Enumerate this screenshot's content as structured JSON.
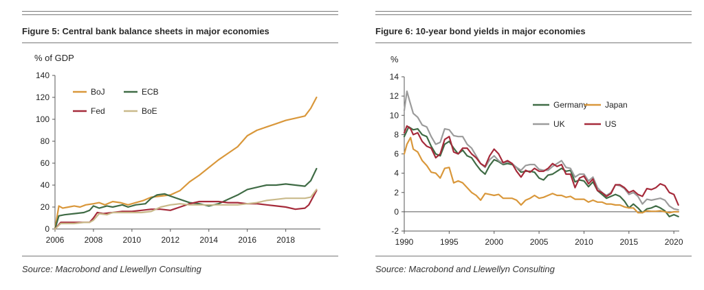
{
  "figures": [
    {
      "title": "Figure 5: Central bank balance sheets in major economies",
      "source": "Source: Macrobond and Llewellyn Consulting",
      "chart_data": {
        "type": "line",
        "title": "Figure 5: Central bank balance sheets in major economies",
        "ylabel": "% of GDP",
        "xlabel": "",
        "xlim": [
          2006,
          2019.8
        ],
        "ylim": [
          0,
          140
        ],
        "xticks": [
          2006,
          2008,
          2010,
          2012,
          2014,
          2016,
          2018
        ],
        "yticks": [
          0,
          20,
          40,
          60,
          80,
          100,
          120,
          140
        ],
        "grid": false,
        "legend": "top-left",
        "series": [
          {
            "name": "BoJ",
            "color": "#d9973a",
            "x": [
              2006,
              2006.2,
              2006.4,
              2006.7,
              2007,
              2007.3,
              2007.6,
              2008,
              2008.3,
              2008.6,
              2009,
              2009.4,
              2009.8,
              2010.2,
              2010.6,
              2011,
              2011.5,
              2012,
              2012.5,
              2013,
              2013.5,
              2014,
              2014.5,
              2015,
              2015.5,
              2016,
              2016.5,
              2017,
              2017.5,
              2018,
              2018.5,
              2019,
              2019.3,
              2019.6
            ],
            "y": [
              0,
              21,
              19,
              20,
              21,
              20,
              22,
              23,
              24,
              22,
              25,
              24,
              22,
              24,
              26,
              29,
              30,
              31,
              35,
              43,
              49,
              56,
              63,
              69,
              75,
              85,
              90,
              93,
              96,
              99,
              101,
              103,
              110,
              120
            ]
          },
          {
            "name": "ECB",
            "color": "#3f6b45",
            "x": [
              2006,
              2006.2,
              2006.5,
              2007,
              2007.5,
              2007.8,
              2008,
              2008.3,
              2008.7,
              2009,
              2009.5,
              2009.8,
              2010.2,
              2010.7,
              2011,
              2011.3,
              2011.7,
              2012,
              2012.5,
              2013,
              2013.5,
              2014,
              2014.5,
              2015,
              2015.5,
              2016,
              2016.5,
              2017,
              2017.5,
              2018,
              2018.5,
              2019,
              2019.3,
              2019.6
            ],
            "y": [
              0,
              12,
              13,
              14,
              15,
              17,
              21,
              19,
              21,
              20,
              22,
              20,
              22,
              23,
              28,
              31,
              32,
              30,
              27,
              24,
              23,
              21,
              23,
              27,
              31,
              36,
              38,
              40,
              40,
              41,
              40,
              39,
              44,
              55
            ]
          },
          {
            "name": "Fed",
            "color": "#a52a3a",
            "x": [
              2006,
              2006.3,
              2007,
              2007.5,
              2007.8,
              2008,
              2008.2,
              2008.5,
              2009,
              2009.5,
              2010,
              2010.5,
              2011,
              2011.5,
              2012,
              2012.5,
              2013,
              2013.5,
              2014,
              2014.5,
              2015,
              2015.5,
              2016,
              2016.5,
              2017,
              2017.5,
              2018,
              2018.5,
              2019,
              2019.2,
              2019.6
            ],
            "y": [
              0,
              6,
              6,
              6,
              6,
              10,
              15,
              14,
              15,
              16,
              16,
              17,
              18,
              18,
              17,
              20,
              23,
              25,
              25,
              25,
              24,
              24,
              23,
              23,
              22,
              21,
              20,
              18,
              19,
              22,
              35
            ]
          },
          {
            "name": "BoE",
            "color": "#c9b98a",
            "x": [
              2006,
              2006.3,
              2007,
              2007.5,
              2007.8,
              2008,
              2008.3,
              2008.7,
              2009,
              2009.5,
              2010,
              2010.5,
              2011,
              2011.5,
              2012,
              2012.5,
              2013,
              2013.5,
              2014,
              2014.5,
              2015,
              2015.5,
              2016,
              2016.5,
              2017,
              2017.5,
              2018,
              2018.5,
              2019,
              2019.3,
              2019.6
            ],
            "y": [
              0,
              5,
              5,
              6,
              6,
              8,
              14,
              13,
              15,
              15,
              15,
              15,
              16,
              20,
              22,
              23,
              22,
              22,
              22,
              22,
              22,
              22,
              23,
              24,
              26,
              27,
              28,
              28,
              28,
              29,
              36
            ]
          }
        ]
      }
    },
    {
      "title": "Figure 6: 10-year bond yields in major economies",
      "source": "Source: Macrobond and Llewellyn Consulting",
      "chart_data": {
        "type": "line",
        "title": "Figure 6: 10-year bond yields in major economies",
        "ylabel": "%",
        "xlabel": "",
        "xlim": [
          1990,
          2020.6
        ],
        "ylim": [
          -2,
          14
        ],
        "xticks": [
          1990,
          1995,
          2000,
          2005,
          2010,
          2015,
          2020
        ],
        "yticks": [
          -2,
          0,
          2,
          4,
          6,
          8,
          10,
          12,
          14
        ],
        "grid": false,
        "legend": "top-right",
        "series": [
          {
            "name": "Germany",
            "color": "#3f6b45",
            "x": [
              1990,
              1990.5,
              1991,
              1991.5,
              1992,
              1992.5,
              1993,
              1993.5,
              1994,
              1994.5,
              1995,
              1995.5,
              1996,
              1996.5,
              1997,
              1997.5,
              1998,
              1998.5,
              1999,
              1999.5,
              2000,
              2000.5,
              2001,
              2001.5,
              2002,
              2002.5,
              2003,
              2003.5,
              2004,
              2004.5,
              2005,
              2005.5,
              2006,
              2006.5,
              2007,
              2007.5,
              2008,
              2008.5,
              2009,
              2009.5,
              2010,
              2010.5,
              2011,
              2011.5,
              2012,
              2012.5,
              2013,
              2013.5,
              2014,
              2014.5,
              2015,
              2015.5,
              2016,
              2016.5,
              2017,
              2017.5,
              2018,
              2018.5,
              2019,
              2019.5,
              2020,
              2020.5
            ],
            "y": [
              7.8,
              8.8,
              8.5,
              8.6,
              8.0,
              7.8,
              6.8,
              6.0,
              5.8,
              7.0,
              7.3,
              6.6,
              6.0,
              6.4,
              5.8,
              5.6,
              4.9,
              4.3,
              3.9,
              4.8,
              5.4,
              5.2,
              4.9,
              5.0,
              4.9,
              4.6,
              4.1,
              4.2,
              4.2,
              4.1,
              3.5,
              3.3,
              3.8,
              3.9,
              4.2,
              4.5,
              4.2,
              4.3,
              3.1,
              3.3,
              3.2,
              2.6,
              3.1,
              2.2,
              1.8,
              1.4,
              1.6,
              1.8,
              1.6,
              1.1,
              0.4,
              0.8,
              0.4,
              -0.1,
              0.3,
              0.4,
              0.6,
              0.4,
              0.1,
              -0.5,
              -0.3,
              -0.5
            ]
          },
          {
            "name": "Japan",
            "color": "#d9973a",
            "x": [
              1990,
              1990.3,
              1990.7,
              1991,
              1991.5,
              1992,
              1992.5,
              1993,
              1993.5,
              1994,
              1994.5,
              1995,
              1995.5,
              1996,
              1996.5,
              1997,
              1997.5,
              1998,
              1998.5,
              1999,
              1999.5,
              2000,
              2000.5,
              2001,
              2001.5,
              2002,
              2002.5,
              2003,
              2003.5,
              2004,
              2004.5,
              2005,
              2005.5,
              2006,
              2006.5,
              2007,
              2007.5,
              2008,
              2008.5,
              2009,
              2009.5,
              2010,
              2010.5,
              2011,
              2011.5,
              2012,
              2012.5,
              2013,
              2013.5,
              2014,
              2014.5,
              2015,
              2015.5,
              2016,
              2016.5,
              2017,
              2017.5,
              2018,
              2018.5,
              2019,
              2019.5,
              2020,
              2020.5
            ],
            "y": [
              6.0,
              7.0,
              7.7,
              6.5,
              6.2,
              5.3,
              4.8,
              4.1,
              4.0,
              3.5,
              4.5,
              4.6,
              3.0,
              3.2,
              3.0,
              2.5,
              2.0,
              1.7,
              1.2,
              1.9,
              1.8,
              1.7,
              1.8,
              1.4,
              1.4,
              1.4,
              1.2,
              0.7,
              1.2,
              1.4,
              1.7,
              1.4,
              1.5,
              1.7,
              1.9,
              1.7,
              1.7,
              1.5,
              1.6,
              1.3,
              1.3,
              1.3,
              1.0,
              1.2,
              1.0,
              1.0,
              0.8,
              0.8,
              0.7,
              0.7,
              0.5,
              0.4,
              0.4,
              -0.1,
              -0.1,
              0.1,
              0.05,
              0.05,
              0.1,
              0.0,
              -0.1,
              0.0,
              0.0
            ]
          },
          {
            "name": "UK",
            "color": "#9b9b9b",
            "x": [
              1990,
              1990.3,
              1990.6,
              1991,
              1991.5,
              1992,
              1992.5,
              1993,
              1993.5,
              1994,
              1994.5,
              1995,
              1995.5,
              1996,
              1996.5,
              1997,
              1997.5,
              1998,
              1998.5,
              1999,
              1999.5,
              2000,
              2000.5,
              2001,
              2001.5,
              2002,
              2002.5,
              2003,
              2003.5,
              2004,
              2004.5,
              2005,
              2005.5,
              2006,
              2006.5,
              2007,
              2007.5,
              2008,
              2008.5,
              2009,
              2009.5,
              2010,
              2010.5,
              2011,
              2011.5,
              2012,
              2012.5,
              2013,
              2013.5,
              2014,
              2014.5,
              2015,
              2015.5,
              2016,
              2016.5,
              2017,
              2017.5,
              2018,
              2018.5,
              2019,
              2019.5,
              2020,
              2020.5
            ],
            "y": [
              10.5,
              12.5,
              11.5,
              10.2,
              9.8,
              9.0,
              8.8,
              7.8,
              7.0,
              7.2,
              8.6,
              8.5,
              7.9,
              7.8,
              7.8,
              7.0,
              6.6,
              5.8,
              5.0,
              4.6,
              5.4,
              5.8,
              5.3,
              5.0,
              5.2,
              5.0,
              4.6,
              4.3,
              4.8,
              4.9,
              4.9,
              4.4,
              4.3,
              4.3,
              4.7,
              5.0,
              5.3,
              4.6,
              4.5,
              3.6,
              3.9,
              3.9,
              3.2,
              3.6,
              2.5,
              2.0,
              1.7,
              2.0,
              2.8,
              2.7,
              2.4,
              1.8,
              2.0,
              1.6,
              0.8,
              1.3,
              1.2,
              1.3,
              1.4,
              1.2,
              0.6,
              0.3,
              0.2
            ]
          },
          {
            "name": "US",
            "color": "#a52a3a",
            "x": [
              1990,
              1990.3,
              1990.7,
              1991,
              1991.5,
              1992,
              1992.5,
              1993,
              1993.5,
              1994,
              1994.5,
              1995,
              1995.5,
              1996,
              1996.5,
              1997,
              1997.5,
              1998,
              1998.5,
              1999,
              1999.5,
              2000,
              2000.5,
              2001,
              2001.5,
              2002,
              2002.5,
              2003,
              2003.5,
              2004,
              2004.5,
              2005,
              2005.5,
              2006,
              2006.5,
              2007,
              2007.5,
              2008,
              2008.5,
              2009,
              2009.5,
              2010,
              2010.5,
              2011,
              2011.5,
              2012,
              2012.5,
              2013,
              2013.5,
              2014,
              2014.5,
              2015,
              2015.5,
              2016,
              2016.5,
              2017,
              2017.5,
              2018,
              2018.5,
              2019,
              2019.5,
              2020,
              2020.5
            ],
            "y": [
              8.2,
              8.9,
              8.6,
              8.0,
              8.2,
              7.3,
              6.8,
              6.6,
              5.6,
              6.0,
              7.5,
              7.8,
              6.2,
              6.0,
              6.6,
              6.6,
              6.0,
              5.6,
              5.0,
              4.7,
              5.8,
              6.5,
              6.0,
              5.1,
              5.3,
              5.0,
              4.2,
              3.6,
              4.3,
              4.1,
              4.5,
              4.2,
              4.2,
              4.5,
              5.0,
              4.7,
              4.9,
              3.9,
              3.9,
              2.5,
              3.5,
              3.7,
              2.9,
              3.4,
              2.2,
              2.0,
              1.6,
              1.9,
              2.8,
              2.8,
              2.5,
              2.0,
              2.2,
              1.8,
              1.6,
              2.4,
              2.3,
              2.5,
              2.9,
              2.7,
              2.0,
              1.8,
              0.7
            ]
          }
        ]
      }
    }
  ]
}
